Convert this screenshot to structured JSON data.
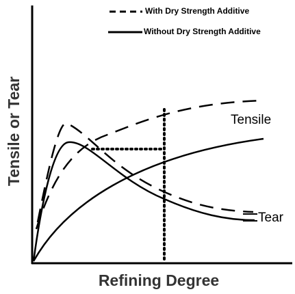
{
  "legend": [
    "With Dry Strength Additive",
    "Without Dry Strength Additive"
  ],
  "curve_labels": [
    "Tensile",
    "Tear"
  ],
  "x_axis_label": "Refining Degree",
  "y_axis_label": "Tensile or Tear"
}
